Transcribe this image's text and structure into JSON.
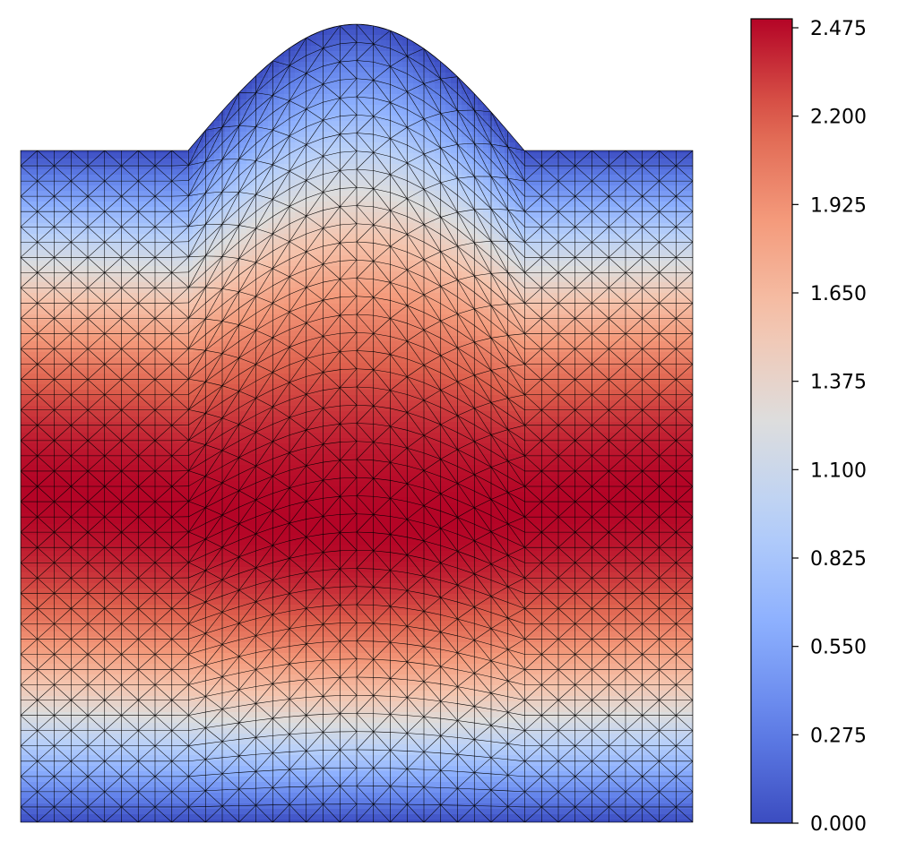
{
  "chart_data": {
    "type": "heatmap",
    "title": "",
    "xlabel": "",
    "ylabel": "",
    "colormap": "coolwarm",
    "colors": {
      "cmap_low": "#3b4cc0",
      "cmap_mid": "#dddddd",
      "cmap_high": "#b40426",
      "mesh_line": "#000000"
    },
    "colorbar": {
      "range": [
        0.0,
        2.475
      ],
      "ticks": [
        "0.000",
        "0.275",
        "0.550",
        "0.825",
        "1.100",
        "1.375",
        "1.650",
        "1.925",
        "2.200",
        "2.475"
      ],
      "position": "right"
    },
    "field": {
      "description_of_pattern": "value peaks near 2.475 along a horizontal band in the lower-middle of the domain, decaying to 0 at the top and bottom boundaries",
      "max": 2.475,
      "min": 0.0
    },
    "domain_shape": "square with a sinusoidal bump on the top edge",
    "mesh": "triangular",
    "axes_visible": false
  }
}
